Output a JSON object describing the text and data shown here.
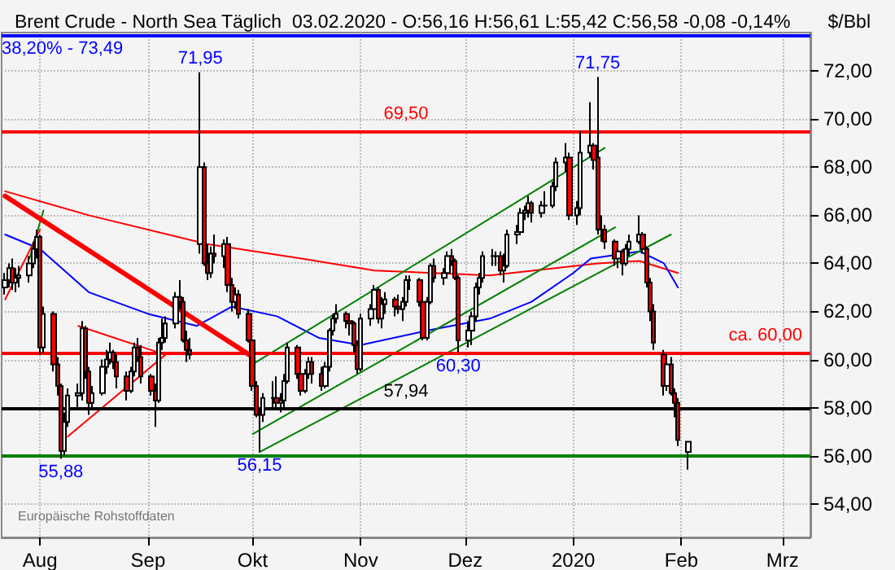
{
  "chart_data": {
    "type": "candlestick",
    "title": "Brent Crude - North Sea Täglich  03.02.2020 - O:56,16 H:56,61 L:55,42 C:56,58 -0,08 -0,14%",
    "ylabel": "$/Bbl",
    "x": [
      "2019-07-22",
      "2019-07-23",
      "2019-07-24",
      "2019-07-25",
      "2019-07-26",
      "2019-07-29",
      "2019-07-30",
      "2019-07-31",
      "2019-08-01",
      "2019-08-02",
      "2019-08-05",
      "2019-08-06",
      "2019-08-07",
      "2019-08-08",
      "2019-08-09",
      "2019-08-12",
      "2019-08-13",
      "2019-08-14",
      "2019-08-15",
      "2019-08-16",
      "2019-08-19",
      "2019-08-20",
      "2019-08-21",
      "2019-08-22",
      "2019-08-23",
      "2019-08-26",
      "2019-08-27",
      "2019-08-28",
      "2019-08-29",
      "2019-08-30",
      "2019-09-02",
      "2019-09-03",
      "2019-09-04",
      "2019-09-05",
      "2019-09-06",
      "2019-09-09",
      "2019-09-10",
      "2019-09-11",
      "2019-09-12",
      "2019-09-13",
      "2019-09-16",
      "2019-09-17",
      "2019-09-18",
      "2019-09-19",
      "2019-09-20",
      "2019-09-23",
      "2019-09-24",
      "2019-09-25",
      "2019-09-26",
      "2019-09-27",
      "2019-09-30",
      "2019-10-01",
      "2019-10-02",
      "2019-10-03",
      "2019-10-04",
      "2019-10-07",
      "2019-10-08",
      "2019-10-09",
      "2019-10-10",
      "2019-10-11",
      "2019-10-14",
      "2019-10-15",
      "2019-10-16",
      "2019-10-17",
      "2019-10-18",
      "2019-10-21",
      "2019-10-22",
      "2019-10-23",
      "2019-10-24",
      "2019-10-25",
      "2019-10-28",
      "2019-10-29",
      "2019-10-30",
      "2019-10-31",
      "2019-11-01",
      "2019-11-04",
      "2019-11-05",
      "2019-11-06",
      "2019-11-07",
      "2019-11-08",
      "2019-11-11",
      "2019-11-12",
      "2019-11-13",
      "2019-11-14",
      "2019-11-15",
      "2019-11-18",
      "2019-11-19",
      "2019-11-20",
      "2019-11-21",
      "2019-11-22",
      "2019-11-25",
      "2019-11-26",
      "2019-11-27",
      "2019-11-28",
      "2019-11-29",
      "2019-12-02",
      "2019-12-03",
      "2019-12-04",
      "2019-12-05",
      "2019-12-06",
      "2019-12-09",
      "2019-12-10",
      "2019-12-11",
      "2019-12-12",
      "2019-12-13",
      "2019-12-16",
      "2019-12-17",
      "2019-12-18",
      "2019-12-19",
      "2019-12-20",
      "2019-12-23",
      "2019-12-24",
      "2019-12-26",
      "2019-12-27",
      "2019-12-30",
      "2019-12-31",
      "2020-01-02",
      "2020-01-03",
      "2020-01-06",
      "2020-01-07",
      "2020-01-08",
      "2020-01-09",
      "2020-01-10",
      "2020-01-13",
      "2020-01-14",
      "2020-01-15",
      "2020-01-16",
      "2020-01-17",
      "2020-01-20",
      "2020-01-21",
      "2020-01-22",
      "2020-01-23",
      "2020-01-24",
      "2020-01-27",
      "2020-01-28",
      "2020-01-29",
      "2020-01-30",
      "2020-01-31",
      "2020-02-03"
    ],
    "ohlc": [
      [
        63.0,
        63.6,
        62.7,
        63.3
      ],
      [
        63.3,
        64.0,
        63.0,
        63.8
      ],
      [
        63.8,
        64.2,
        62.9,
        63.2
      ],
      [
        63.2,
        63.8,
        62.8,
        63.4
      ],
      [
        63.4,
        63.9,
        63.0,
        63.5
      ],
      [
        63.5,
        64.3,
        63.2,
        64.0
      ],
      [
        64.0,
        64.9,
        63.8,
        64.6
      ],
      [
        64.6,
        65.4,
        64.2,
        65.1
      ],
      [
        65.1,
        65.2,
        60.2,
        60.5
      ],
      [
        60.5,
        62.2,
        60.3,
        61.9
      ],
      [
        61.9,
        62.0,
        59.5,
        59.8
      ],
      [
        59.8,
        60.1,
        58.5,
        58.9
      ],
      [
        58.9,
        59.0,
        55.88,
        56.2
      ],
      [
        56.2,
        57.8,
        56.0,
        57.4
      ],
      [
        57.4,
        58.8,
        57.2,
        58.5
      ],
      [
        58.5,
        59.0,
        57.9,
        58.6
      ],
      [
        58.6,
        61.6,
        58.3,
        61.3
      ],
      [
        61.3,
        61.4,
        59.2,
        59.5
      ],
      [
        59.5,
        59.7,
        57.7,
        58.2
      ],
      [
        58.2,
        58.9,
        57.9,
        58.6
      ],
      [
        58.6,
        60.0,
        58.5,
        59.7
      ],
      [
        59.7,
        60.4,
        59.4,
        60.0
      ],
      [
        60.0,
        60.7,
        59.8,
        60.3
      ],
      [
        60.3,
        60.4,
        59.6,
        59.9
      ],
      [
        59.9,
        60.2,
        58.8,
        59.3
      ],
      [
        59.3,
        59.5,
        58.3,
        58.7
      ],
      [
        58.7,
        59.7,
        58.6,
        59.5
      ],
      [
        59.5,
        60.7,
        59.3,
        60.5
      ],
      [
        60.5,
        60.9,
        59.9,
        60.1
      ],
      [
        60.1,
        60.6,
        59.0,
        59.3
      ],
      [
        59.3,
        59.4,
        58.5,
        58.7
      ],
      [
        58.7,
        59.0,
        57.2,
        58.3
      ],
      [
        58.3,
        60.9,
        58.2,
        60.7
      ],
      [
        60.7,
        61.7,
        60.4,
        60.9
      ],
      [
        60.9,
        61.8,
        60.7,
        61.5
      ],
      [
        61.5,
        62.8,
        61.3,
        62.6
      ],
      [
        62.6,
        63.3,
        62.1,
        62.4
      ],
      [
        62.4,
        62.6,
        60.7,
        60.8
      ],
      [
        60.8,
        61.2,
        59.9,
        60.4
      ],
      [
        60.4,
        60.9,
        60.0,
        60.2
      ],
      [
        64.8,
        71.95,
        64.4,
        68.0
      ],
      [
        68.0,
        68.2,
        63.9,
        64.0
      ],
      [
        64.0,
        64.8,
        63.3,
        63.6
      ],
      [
        63.6,
        64.7,
        63.4,
        64.4
      ],
      [
        64.4,
        65.2,
        64.0,
        64.3
      ],
      [
        64.3,
        65.0,
        63.8,
        64.8
      ],
      [
        64.8,
        65.1,
        62.8,
        63.1
      ],
      [
        63.1,
        63.4,
        62.0,
        62.4
      ],
      [
        62.4,
        63.0,
        62.1,
        62.7
      ],
      [
        62.7,
        62.9,
        61.7,
        61.9
      ],
      [
        61.9,
        62.1,
        60.7,
        60.8
      ],
      [
        60.8,
        60.9,
        58.7,
        58.9
      ],
      [
        58.9,
        59.1,
        57.6,
        57.7
      ],
      [
        57.7,
        58.0,
        56.15,
        57.7
      ],
      [
        57.7,
        58.6,
        57.4,
        58.4
      ],
      [
        58.4,
        59.1,
        57.9,
        58.4
      ],
      [
        58.4,
        59.3,
        57.9,
        58.2
      ],
      [
        58.2,
        58.6,
        57.8,
        58.3
      ],
      [
        58.3,
        59.4,
        58.0,
        59.1
      ],
      [
        59.1,
        60.7,
        59.0,
        60.5
      ],
      [
        60.5,
        60.6,
        59.2,
        59.4
      ],
      [
        59.4,
        59.6,
        58.5,
        58.7
      ],
      [
        58.7,
        59.6,
        58.6,
        59.4
      ],
      [
        59.4,
        60.1,
        59.2,
        59.9
      ],
      [
        59.9,
        60.1,
        59.0,
        59.4
      ],
      [
        59.4,
        59.7,
        58.7,
        58.9
      ],
      [
        58.9,
        59.9,
        58.8,
        59.7
      ],
      [
        59.7,
        61.3,
        59.5,
        61.2
      ],
      [
        61.2,
        61.9,
        61.0,
        61.7
      ],
      [
        61.7,
        62.3,
        61.5,
        61.9
      ],
      [
        61.9,
        62.0,
        61.3,
        61.6
      ],
      [
        61.6,
        61.8,
        61.0,
        61.5
      ],
      [
        61.5,
        61.6,
        60.3,
        60.6
      ],
      [
        60.6,
        60.8,
        59.4,
        59.6
      ],
      [
        59.6,
        61.9,
        59.5,
        61.7
      ],
      [
        61.7,
        62.3,
        61.4,
        62.1
      ],
      [
        62.1,
        63.1,
        61.9,
        62.9
      ],
      [
        62.9,
        63.0,
        61.5,
        61.7
      ],
      [
        61.7,
        62.6,
        61.3,
        62.3
      ],
      [
        62.3,
        62.8,
        61.9,
        62.5
      ],
      [
        62.5,
        62.6,
        61.8,
        62.2
      ],
      [
        62.2,
        62.7,
        61.9,
        62.1
      ],
      [
        62.1,
        62.6,
        61.6,
        62.4
      ],
      [
        62.4,
        63.5,
        62.2,
        63.3
      ],
      [
        63.3,
        63.5,
        62.9,
        63.3
      ],
      [
        63.3,
        63.4,
        62.2,
        62.4
      ],
      [
        62.4,
        62.6,
        60.8,
        60.9
      ],
      [
        60.9,
        62.6,
        60.8,
        62.4
      ],
      [
        62.4,
        64.0,
        62.3,
        63.9
      ],
      [
        63.9,
        64.2,
        63.2,
        63.4
      ],
      [
        63.4,
        63.8,
        63.1,
        63.6
      ],
      [
        63.6,
        64.5,
        63.4,
        64.3
      ],
      [
        64.3,
        64.6,
        63.9,
        64.1
      ],
      [
        64.1,
        64.2,
        63.3,
        63.4
      ],
      [
        63.4,
        63.5,
        60.3,
        60.8
      ],
      [
        60.8,
        61.6,
        60.5,
        61.2
      ],
      [
        61.2,
        62.0,
        60.6,
        61.8
      ],
      [
        61.8,
        63.2,
        61.6,
        63.0
      ],
      [
        63.0,
        63.6,
        62.7,
        63.4
      ],
      [
        63.4,
        64.5,
        63.2,
        64.3
      ],
      [
        64.3,
        64.6,
        63.9,
        64.3
      ],
      [
        64.3,
        64.5,
        63.9,
        64.3
      ],
      [
        64.3,
        64.5,
        63.5,
        63.7
      ],
      [
        63.7,
        64.4,
        63.2,
        63.9
      ],
      [
        63.9,
        65.4,
        63.8,
        65.2
      ],
      [
        65.2,
        65.6,
        64.8,
        65.3
      ],
      [
        65.3,
        66.3,
        65.2,
        66.1
      ],
      [
        66.1,
        66.4,
        65.8,
        66.2
      ],
      [
        66.2,
        66.8,
        65.9,
        66.5
      ],
      [
        66.5,
        66.6,
        65.7,
        66.1
      ],
      [
        66.1,
        66.6,
        65.9,
        66.4
      ],
      [
        66.4,
        67.0,
        66.2,
        66.4
      ],
      [
        66.4,
        67.4,
        66.3,
        67.2
      ],
      [
        67.2,
        68.4,
        67.0,
        68.2
      ],
      [
        68.2,
        69.0,
        67.8,
        68.4
      ],
      [
        68.4,
        68.6,
        65.8,
        66.0
      ],
      [
        66.0,
        66.6,
        65.6,
        66.3
      ],
      [
        66.3,
        69.5,
        66.0,
        68.6
      ],
      [
        68.6,
        70.7,
        68.4,
        68.9
      ],
      [
        68.9,
        69.0,
        67.9,
        68.3
      ],
      [
        68.4,
        71.75,
        65.2,
        65.4
      ],
      [
        65.4,
        66.0,
        64.9,
        65.4
      ],
      [
        65.4,
        65.6,
        64.6,
        64.9
      ],
      [
        64.9,
        65.0,
        63.9,
        64.2
      ],
      [
        64.2,
        64.8,
        63.8,
        64.5
      ],
      [
        64.5,
        64.6,
        63.5,
        64.0
      ],
      [
        64.0,
        64.8,
        63.9,
        64.6
      ],
      [
        64.6,
        65.2,
        64.3,
        64.9
      ],
      [
        64.9,
        66.0,
        64.8,
        65.2
      ],
      [
        65.2,
        65.3,
        64.4,
        64.6
      ],
      [
        64.6,
        64.7,
        63.0,
        63.2
      ],
      [
        63.2,
        63.4,
        61.6,
        62.0
      ],
      [
        62.0,
        62.3,
        60.4,
        60.7
      ],
      [
        60.2,
        60.4,
        58.5,
        58.9
      ],
      [
        58.9,
        60.0,
        58.7,
        59.8
      ],
      [
        59.8,
        60.1,
        58.5,
        58.6
      ],
      [
        58.6,
        58.8,
        57.6,
        58.2
      ],
      [
        58.2,
        58.4,
        56.4,
        56.66
      ],
      [
        56.16,
        56.61,
        55.42,
        56.58
      ]
    ],
    "series": [
      {
        "type": "line",
        "color": "#ff0000",
        "x": [
          "2019-07-22",
          "2019-08-15",
          "2019-09-18",
          "2019-10-15",
          "2019-11-05",
          "2019-12-08",
          "2020-01-08",
          "2020-01-20",
          "2020-01-31"
        ],
        "values": [
          67.0,
          66.0,
          64.8,
          64.2,
          63.7,
          63.5,
          64.0,
          64.1,
          63.6
        ]
      },
      {
        "type": "line",
        "color": "#0000ff",
        "x": [
          "2019-07-22",
          "2019-08-01",
          "2019-08-15",
          "2019-09-01",
          "2019-09-15",
          "2019-09-25",
          "2019-10-08",
          "2019-10-20",
          "2019-11-01",
          "2019-11-20",
          "2019-12-08",
          "2019-12-20",
          "2020-01-01",
          "2020-01-06",
          "2020-01-20",
          "2020-01-27",
          "2020-01-31"
        ],
        "values": [
          65.2,
          64.6,
          62.8,
          61.9,
          61.4,
          62.2,
          61.8,
          60.9,
          60.6,
          61.2,
          61.7,
          62.4,
          63.6,
          64.2,
          64.5,
          64.0,
          63.0
        ]
      },
      {
        "type": "line",
        "color": "#008000",
        "x": [
          "2019-10-01",
          "2020-01-10"
        ],
        "values": [
          59.8,
          68.8
        ]
      },
      {
        "type": "line",
        "color": "#008000",
        "x": [
          "2019-10-01",
          "2020-01-13"
        ],
        "values": [
          56.9,
          65.5
        ]
      },
      {
        "type": "line",
        "color": "#008000",
        "x": [
          "2019-10-03",
          "2020-01-29"
        ],
        "values": [
          56.15,
          65.2
        ]
      },
      {
        "type": "line",
        "color": "#008000",
        "x": [
          "2019-07-29",
          "2019-08-02"
        ],
        "values": [
          64.2,
          66.2
        ]
      },
      {
        "type": "line",
        "color": "#ff0000",
        "x": [
          "2019-07-22",
          "2019-09-30"
        ],
        "values": [
          66.8,
          60.2
        ]
      },
      {
        "type": "line",
        "color": "#ff0000",
        "x": [
          "2019-07-22",
          "2019-08-01"
        ],
        "values": [
          62.5,
          65.4
        ]
      },
      {
        "type": "line",
        "color": "#ff0000",
        "x": [
          "2019-08-12",
          "2019-09-06"
        ],
        "values": [
          61.4,
          60.2
        ]
      },
      {
        "type": "line",
        "color": "#ff0000",
        "x": [
          "2019-08-09",
          "2019-09-06"
        ],
        "values": [
          56.8,
          60.2
        ]
      }
    ],
    "ref_lines": [
      {
        "axis": "y",
        "value": 73.49,
        "label": null,
        "color": "#0000ff"
      },
      {
        "axis": "y",
        "value": 69.5,
        "label": "69,50",
        "color": "#ff0000"
      },
      {
        "axis": "y",
        "value": 60.3,
        "label": "ca. 60,00",
        "color": "#ff0000"
      },
      {
        "axis": "y",
        "value": 57.94,
        "label": "57,94",
        "color": "#000000"
      },
      {
        "axis": "y",
        "value": 56.0,
        "label": null,
        "color": "#008000"
      }
    ],
    "annotations": [
      {
        "text": "38,20% - 73,49",
        "x": "2019-07-21",
        "y": 73.49
      },
      {
        "text": "71,95",
        "x": "2019-09-16",
        "y": 71.95
      },
      {
        "text": "71,75",
        "x": "2020-01-08",
        "y": 71.75
      },
      {
        "text": "55,88",
        "x": "2019-08-07",
        "y": 55.88
      },
      {
        "text": "56,15",
        "x": "2019-10-03",
        "y": 56.15
      },
      {
        "text": "60,30",
        "x": "2019-11-29",
        "y": 60.3
      },
      "Europäische Rohstoffdaten"
    ],
    "xlim": [
      "2019-07-21",
      "2020-03-09"
    ],
    "xticks": [
      {
        "value": "2019-08-01",
        "label": "Aug"
      },
      {
        "value": "2019-09-01",
        "label": "Sep"
      },
      {
        "value": "2019-10-01",
        "label": "Okt"
      },
      {
        "value": "2019-11-01",
        "label": "Nov"
      },
      {
        "value": "2019-12-01",
        "label": "Dez"
      },
      {
        "value": "2020-01-01",
        "label": "2020"
      },
      {
        "value": "2020-02-01",
        "label": "Feb"
      },
      {
        "value": "2020-03-01",
        "label": "Mrz"
      }
    ],
    "ylim": [
      52.6,
      73.6
    ],
    "yticks": [
      {
        "value": 54,
        "label": "54,00"
      },
      {
        "value": 56,
        "label": "56,00"
      },
      {
        "value": 58,
        "label": "58,00"
      },
      {
        "value": 60,
        "label": "60,00"
      },
      {
        "value": 62,
        "label": "62,00"
      },
      {
        "value": 64,
        "label": "64,00"
      },
      {
        "value": 66,
        "label": "66,00"
      },
      {
        "value": 68,
        "label": "68,00"
      },
      {
        "value": 70,
        "label": "70,00"
      },
      {
        "value": 72,
        "label": "72,00"
      }
    ],
    "grid": true,
    "marker": "none"
  }
}
